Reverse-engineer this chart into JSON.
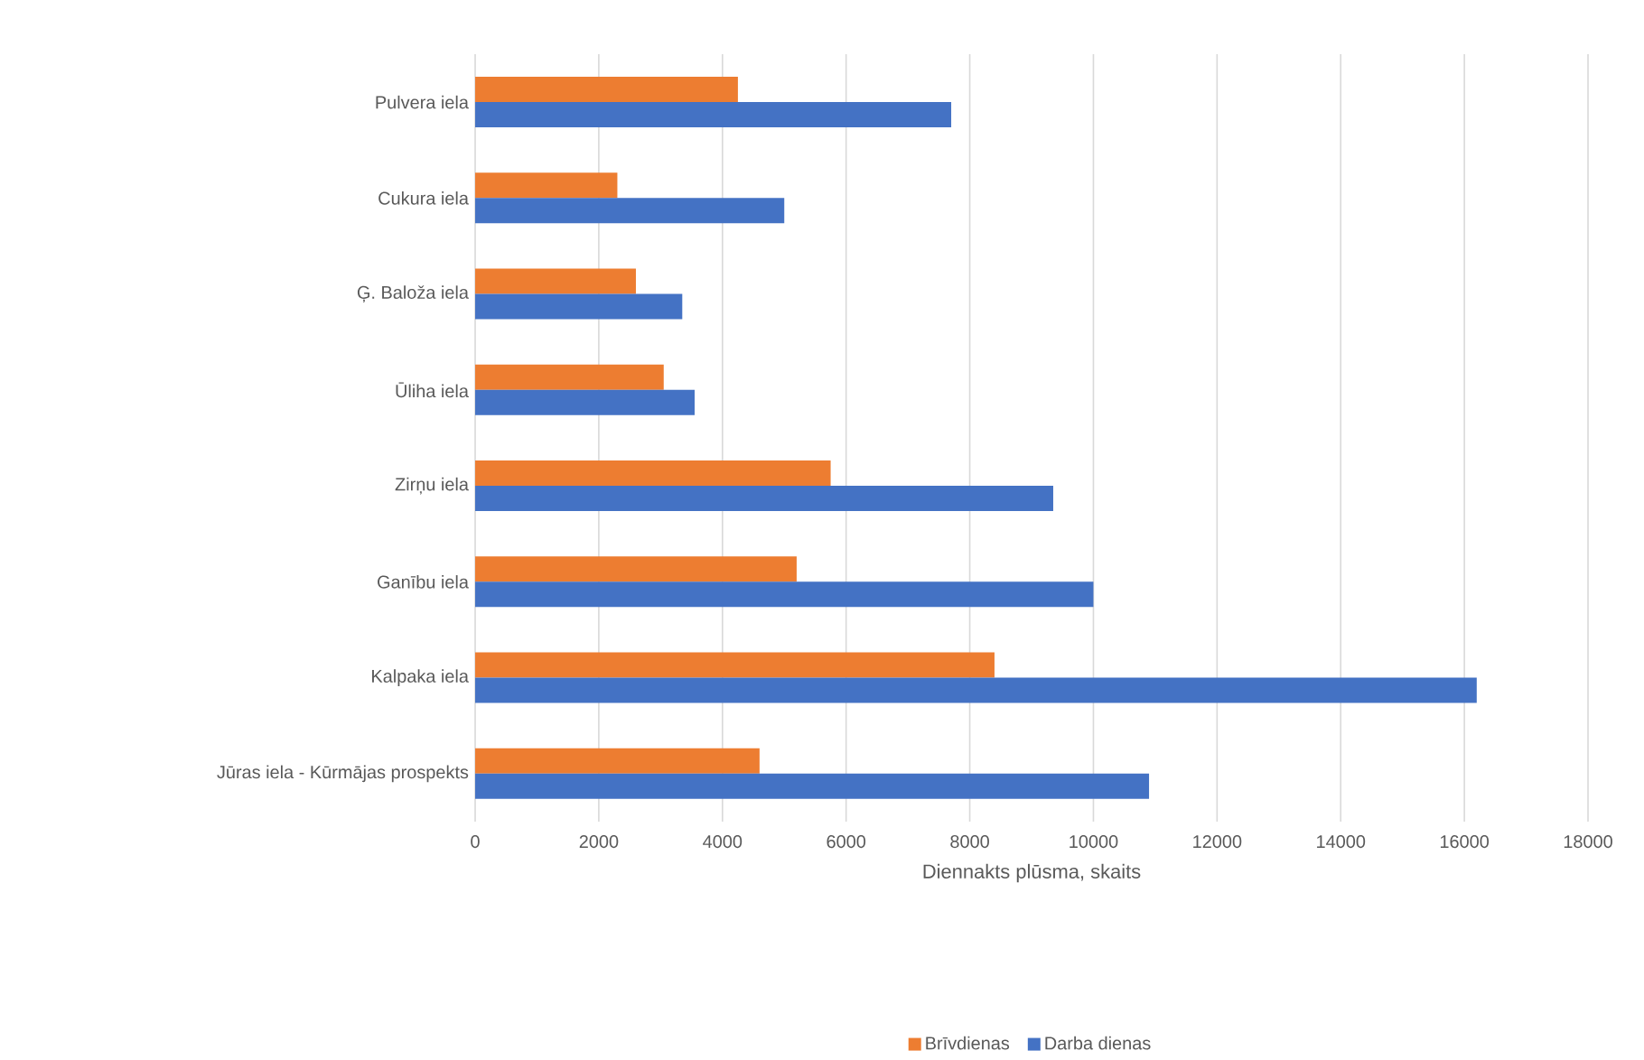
{
  "chart_data": {
    "type": "bar",
    "orientation": "horizontal",
    "xlabel": "Diennakts plūsma, skaits",
    "categories": [
      "Pulvera iela",
      "Cukura iela",
      "Ģ. Baloža iela",
      "Ūliha iela",
      "Zirņu iela",
      "Ganību iela",
      "Kalpaka iela",
      "Jūras iela - Kūrmājas prospekts"
    ],
    "series": [
      {
        "name": "Brīvdienas",
        "color": "#ed7d31",
        "values": [
          4250,
          2300,
          2600,
          3050,
          5750,
          5200,
          8400,
          4600
        ]
      },
      {
        "name": "Darba dienas",
        "color": "#4472c4",
        "values": [
          7700,
          5000,
          3350,
          3550,
          9350,
          10000,
          16200,
          10900
        ]
      }
    ],
    "xlim": [
      0,
      18000
    ],
    "xticks": [
      0,
      2000,
      4000,
      6000,
      8000,
      10000,
      12000,
      14000,
      16000,
      18000
    ],
    "grid": "x",
    "legend": "bottom"
  }
}
